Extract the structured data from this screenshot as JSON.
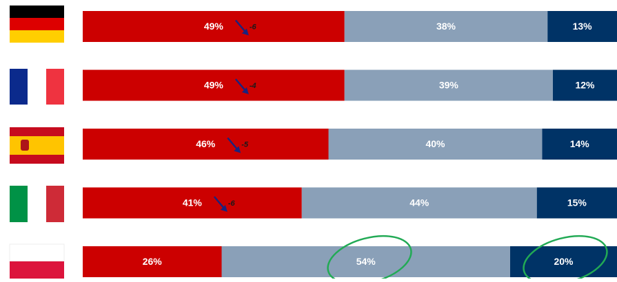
{
  "chart_data": {
    "type": "stacked-bar-horizontal",
    "categories": [
      null,
      null,
      null,
      null,
      null
    ],
    "xlim": [
      0,
      100
    ],
    "series": [
      {
        "color": "#cc0000",
        "values": [
          49,
          49,
          46,
          41,
          26
        ],
        "value_labels": [
          "49%",
          "49%",
          "46%",
          "41%",
          "26%"
        ]
      },
      {
        "color": "#8aa0b8",
        "values": [
          38,
          39,
          40,
          44,
          54
        ],
        "value_labels": [
          "38%",
          "39%",
          "40%",
          "44%",
          "54%"
        ]
      },
      {
        "color": "#003366",
        "values": [
          13,
          12,
          14,
          15,
          20
        ],
        "value_labels": [
          "13%",
          "12%",
          "14%",
          "15%",
          "20%"
        ]
      }
    ],
    "changes": [
      -6,
      -4,
      -5,
      -6,
      null
    ]
  }
}
